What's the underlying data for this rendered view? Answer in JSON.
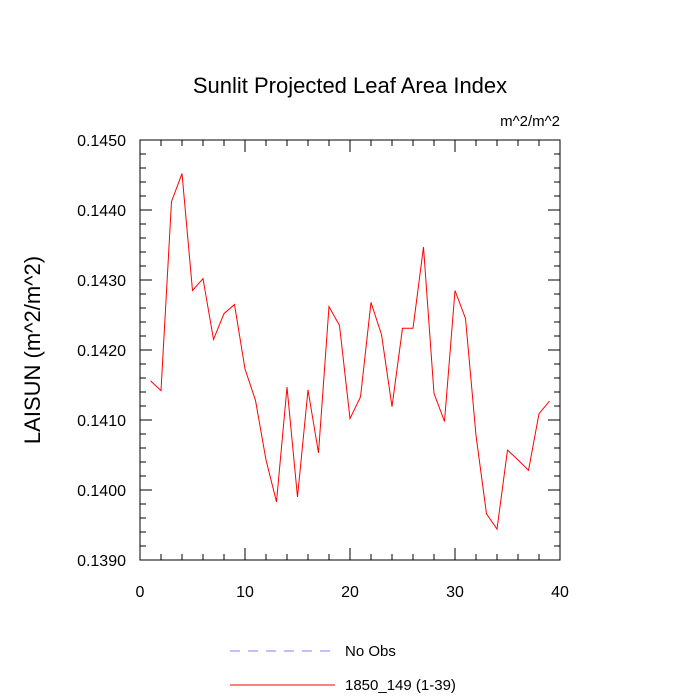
{
  "chart_data": {
    "type": "line",
    "title": "Sunlit Projected Leaf Area Index",
    "units": "m^2/m^2",
    "ylabel": "LAISUN  (m^2/m^2)",
    "xlabel": "",
    "xlim": [
      0,
      40
    ],
    "ylim": [
      0.139,
      0.145
    ],
    "x_ticks": [
      0,
      10,
      20,
      30,
      40
    ],
    "x_tick_labels": [
      "0",
      "10",
      "20",
      "30",
      "40"
    ],
    "y_ticks": [
      0.139,
      0.14,
      0.141,
      0.142,
      0.143,
      0.144,
      0.145
    ],
    "y_tick_labels": [
      "0.1390",
      "0.1400",
      "0.1410",
      "0.1420",
      "0.1430",
      "0.1440",
      "0.1450"
    ],
    "grid": false,
    "legend_position": "bottom",
    "series": [
      {
        "name": "No Obs",
        "color": "#8080ff",
        "dash": "dashed",
        "x": [],
        "y": []
      },
      {
        "name": "1850_149 (1-39)",
        "color": "#ff0000",
        "dash": "solid",
        "x": [
          1,
          2,
          3,
          4,
          5,
          6,
          7,
          8,
          9,
          10,
          11,
          12,
          13,
          14,
          15,
          16,
          17,
          18,
          19,
          20,
          21,
          22,
          23,
          24,
          25,
          26,
          27,
          28,
          29,
          30,
          31,
          32,
          33,
          34,
          35,
          36,
          37,
          38,
          39
        ],
        "y": [
          0.14156,
          0.14142,
          0.14412,
          0.14452,
          0.14285,
          0.14302,
          0.14215,
          0.14252,
          0.14265,
          0.14173,
          0.14128,
          0.14043,
          0.13983,
          0.14147,
          0.1399,
          0.14143,
          0.14053,
          0.14262,
          0.14235,
          0.14102,
          0.14133,
          0.14268,
          0.14222,
          0.14119,
          0.14231,
          0.14231,
          0.14347,
          0.14138,
          0.14098,
          0.14285,
          0.14245,
          0.14078,
          0.13966,
          0.13944,
          0.14057,
          0.14043,
          0.14028,
          0.14109,
          0.14127
        ]
      }
    ]
  }
}
